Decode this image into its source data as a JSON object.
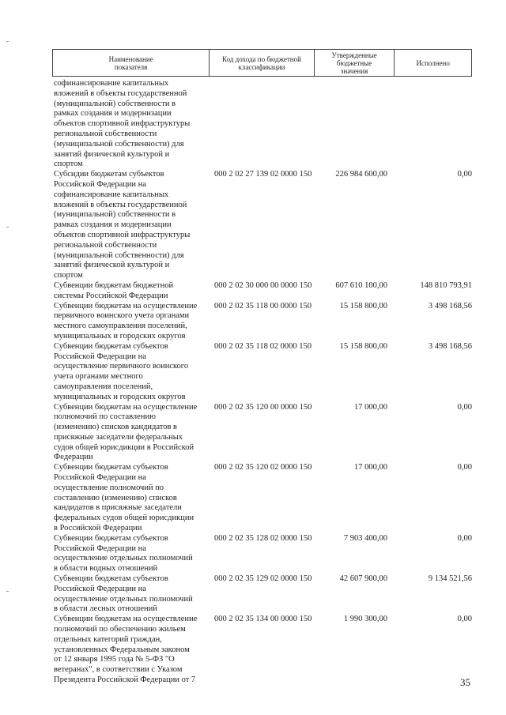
{
  "header": [
    "Наименование\nпоказателя",
    "Код дохода по бюджетной\nклассификации",
    "Утвержденные\nбюджетные\nзначения",
    "Исполнено"
  ],
  "rows": [
    {
      "name": "софинансирование капитальных\nвложений в объекты государственной\n(муниципальной) собственности в\nрамках создания и модернизации\nобъектов спортивной инфраструктуры\nрегиональной собственности\n(муниципальной собственности) для\nзанятий физической культурой и\nспортом",
      "code": "",
      "approved": "",
      "executed": ""
    },
    {
      "name": "Субсидии бюджетам субъектов\nРоссийской Федерации на\nсофинансирование капитальных\nвложений в объекты государственной\n(муниципальной) собственности в\nрамках создания и модернизации\nобъектов спортивной инфраструктуры\nрегиональной собственности\n(муниципальной собственности) для\nзанятий физической культурой и\nспортом",
      "code": "000 2 02 27 139 02 0000 150",
      "approved": "226 984 600,00",
      "executed": "0,00"
    },
    {
      "name": "Субвенции бюджетам бюджетной\nсистемы Российской Федерации",
      "code": "000 2 02 30 000 00 0000 150",
      "approved": "607 610 100,00",
      "executed": "148 810 793,91"
    },
    {
      "name": "Субвенции бюджетам на осуществление\nпервичного воинского учета органами\nместного самоуправления поселений,\nмуниципальных и городских округов",
      "code": "000 2 02 35 118 00 0000 150",
      "approved": "15 158 800,00",
      "executed": "3 498 168,56"
    },
    {
      "name": "Субвенции бюджетам субъектов\nРоссийской Федерации на\nосуществление первичного воинского\nучета органами местного\nсамоуправления поселений,\nмуниципальных и городских округов",
      "code": "000 2 02 35 118 02 0000 150",
      "approved": "15 158 800,00",
      "executed": "3 498 168,56"
    },
    {
      "name": "Субвенции бюджетам на осуществление\nполномочий по составлению\n(изменению) списков кандидатов в\nприсяжные заседатели федеральных\nсудов общей юрисдикции в Российской\nФедерации",
      "code": "000 2 02 35 120 00 0000 150",
      "approved": "17 000,00",
      "executed": "0,00"
    },
    {
      "name": "Субвенции бюджетам субъектов\nРоссийской Федерации на\nосуществление полномочий по\nсоставлению (изменению) списков\nкандидатов в присяжные заседатели\nфедеральных судов общей юрисдикции\nв Российской Федерации",
      "code": "000 2 02 35 120 02 0000 150",
      "approved": "17 000,00",
      "executed": "0,00"
    },
    {
      "name": "Субвенции бюджетам субъектов\nРоссийской Федерации на\nосуществление отдельных полномочий\nв области водных отношений",
      "code": "000 2 02 35 128 02 0000 150",
      "approved": "7 903 400,00",
      "executed": "0,00"
    },
    {
      "name": "Субвенции бюджетам субъектов\nРоссийской Федерации на\nосуществление отдельных полномочий\nв области лесных отношений",
      "code": "000 2 02 35 129 02 0000 150",
      "approved": "42 607 900,00",
      "executed": "9 134 521,56"
    },
    {
      "name": "Субвенции бюджетам на осуществление\nполномочий по обеспечению жильем\nотдельных категорий граждан,\nустановленных Федеральным законом\nот 12 января 1995 года № 5-ФЗ \"О\nветеранах\", в соответствии с Указом\nПрезидента Российской Федерации от 7",
      "code": "000 2 02 35 134 00 0000 150",
      "approved": "1 990 300,00",
      "executed": "0,00"
    }
  ],
  "page_number": "35"
}
